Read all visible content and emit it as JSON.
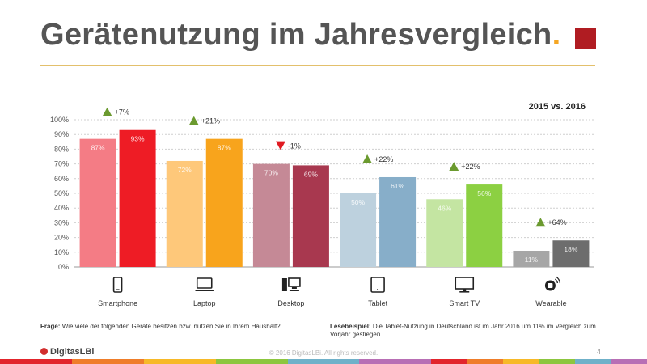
{
  "header": {
    "title": "Gerätenutzung im Jahresvergleich",
    "title_dot": "."
  },
  "chart_data": {
    "type": "bar",
    "comparison_label": "2015 vs. 2016",
    "categories": [
      "Smartphone",
      "Laptop",
      "Desktop",
      "Tablet",
      "Smart TV",
      "Wearable"
    ],
    "icons": [
      "smartphone-icon",
      "laptop-icon",
      "desktop-icon",
      "tablet-icon",
      "smart-tv-icon",
      "wearable-icon"
    ],
    "series": [
      {
        "values": [
          87,
          72,
          70,
          50,
          46,
          11
        ],
        "colors": [
          "#f47c85",
          "#fec87a",
          "#c58996",
          "#bdd1de",
          "#c4e5a2",
          "#a6a6a6"
        ]
      },
      {
        "values": [
          93,
          87,
          69,
          61,
          56,
          18
        ],
        "colors": [
          "#ee1c25",
          "#f8a41c",
          "#a8384f",
          "#87aec9",
          "#8cd042",
          "#6d6d6d"
        ]
      }
    ],
    "data_labels": [
      [
        "87%",
        "72%",
        "70%",
        "50%",
        "46%",
        "11%"
      ],
      [
        "93%",
        "87%",
        "69%",
        "61%",
        "56%",
        "18%"
      ]
    ],
    "changes": [
      "+7%",
      "+21%",
      "-1%",
      "+22%",
      "+22%",
      "+64%"
    ],
    "change_direction": [
      "up",
      "up",
      "down",
      "up",
      "up",
      "up"
    ],
    "change_colors": {
      "up": "#6b9a2f",
      "down": "#e01b22"
    },
    "ylim": [
      0,
      100
    ],
    "yticks": [
      "0%",
      "10%",
      "20%",
      "30%",
      "40%",
      "50%",
      "60%",
      "70%",
      "80%",
      "90%",
      "100%"
    ],
    "grid": "horizontal-dashed"
  },
  "footer": {
    "question_label": "Frage:",
    "question_text": "Wie viele der folgenden Geräte besitzen bzw. nutzen Sie in Ihrem Haushalt?",
    "example_label": "Lesebeispiel:",
    "example_text": "Die Tablet-Nutzung in Deutschland ist im Jahr 2016 um 11% im Vergleich zum Vorjahr gestiegen.",
    "logo": "DigitasLBi",
    "copyright": "© 2016 DigitasLBi. All rights reserved.",
    "page_number": "4"
  },
  "colors": {
    "title": "#555555",
    "title_dot": "#f5a623",
    "accent_square": "#b01c22",
    "rule": "#e3c06c",
    "strip": [
      "#e2252c",
      "#e2252c",
      "#ef7d2a",
      "#ef7d2a",
      "#f7b928",
      "#f7b928",
      "#8cc63f",
      "#8cc63f",
      "#6fb1c9",
      "#6fb1c9",
      "#b86fb5",
      "#b86fb5",
      "#e2252c",
      "#ef7d2a",
      "#f7b928",
      "#8cc63f",
      "#6fb1c9",
      "#b86fb5"
    ]
  }
}
